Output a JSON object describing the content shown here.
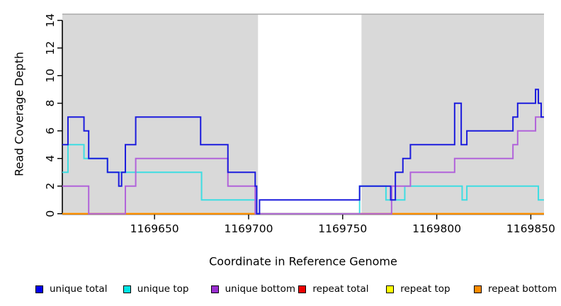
{
  "figure": {
    "xlabel": "Coordinate in Reference Genome",
    "ylabel": "Read Coverage Depth"
  },
  "chart_data": {
    "type": "line",
    "subtype": "step-after-coverage",
    "title": "",
    "xlabel": "Coordinate in Reference Genome",
    "ylabel": "Read Coverage Depth",
    "xlim": [
      1169601,
      1169857
    ],
    "ylim": [
      0,
      14.45
    ],
    "x_ticks": [
      1169650,
      1169700,
      1169750,
      1169800,
      1169850
    ],
    "y_ticks": [
      0,
      2,
      4,
      6,
      8,
      10,
      12,
      14
    ],
    "grid": false,
    "legend_position": "bottom",
    "shading": {
      "color": "#d9d9d9",
      "regions": [
        [
          1169601,
          1169705
        ],
        [
          1169760,
          1169857
        ]
      ],
      "unshaded_gap": [
        1169705,
        1169760
      ],
      "top_border_color": "#a8a8a8"
    },
    "axis_color": "#000000",
    "draw_order": [
      "repeat total",
      "repeat top",
      "repeat bottom",
      "unique top",
      "unique bottom",
      "unique total"
    ],
    "series": [
      {
        "name": "unique total",
        "color": "#1c1cdd",
        "points": [
          [
            1169601,
            5
          ],
          [
            1169604,
            7
          ],
          [
            1169612.5,
            6
          ],
          [
            1169615,
            4
          ],
          [
            1169625,
            3
          ],
          [
            1169631,
            2
          ],
          [
            1169632.5,
            3
          ],
          [
            1169634.5,
            5
          ],
          [
            1169640,
            7
          ],
          [
            1169674.5,
            5
          ],
          [
            1169689,
            3
          ],
          [
            1169703.5,
            2
          ],
          [
            1169704.3,
            0
          ],
          [
            1169705.8,
            1
          ],
          [
            1169759,
            2
          ],
          [
            1169775.5,
            1
          ],
          [
            1169778,
            3
          ],
          [
            1169782,
            4
          ],
          [
            1169786,
            5
          ],
          [
            1169809.5,
            8
          ],
          [
            1169813,
            5
          ],
          [
            1169816,
            6
          ],
          [
            1169840.5,
            7
          ],
          [
            1169843,
            8
          ],
          [
            1169852.5,
            9
          ],
          [
            1169854,
            8
          ],
          [
            1169855.5,
            7
          ]
        ]
      },
      {
        "name": "unique top",
        "color": "#3edde2",
        "points": [
          [
            1169601,
            3
          ],
          [
            1169604,
            5
          ],
          [
            1169612.5,
            4
          ],
          [
            1169625,
            3
          ],
          [
            1169675,
            1
          ],
          [
            1169704.3,
            0
          ],
          [
            1169759,
            2
          ],
          [
            1169773,
            1
          ],
          [
            1169783,
            2
          ],
          [
            1169813.5,
            1
          ],
          [
            1169816,
            2
          ],
          [
            1169854,
            1
          ]
        ]
      },
      {
        "name": "unique bottom",
        "color": "#b163da",
        "points": [
          [
            1169601,
            2
          ],
          [
            1169615,
            0
          ],
          [
            1169634.5,
            2
          ],
          [
            1169640,
            4
          ],
          [
            1169689,
            2
          ],
          [
            1169703.5,
            0
          ],
          [
            1169776,
            2
          ],
          [
            1169786,
            3
          ],
          [
            1169809.5,
            4
          ],
          [
            1169840.5,
            5
          ],
          [
            1169843,
            6
          ],
          [
            1169852.5,
            7
          ]
        ]
      },
      {
        "name": "repeat total",
        "color": "#e60000",
        "points": [
          [
            1169601,
            0
          ]
        ]
      },
      {
        "name": "repeat top",
        "color": "#ffff00",
        "points": [
          [
            1169601,
            0
          ]
        ]
      },
      {
        "name": "repeat bottom",
        "color": "#ff8c00",
        "points": [
          [
            1169601,
            0
          ]
        ]
      }
    ],
    "legend": [
      {
        "label": "unique total",
        "color": "#0000ee"
      },
      {
        "label": "unique top",
        "color": "#00e5e5"
      },
      {
        "label": "unique bottom",
        "color": "#9a2fd0"
      },
      {
        "label": "repeat total",
        "color": "#ee0000"
      },
      {
        "label": "repeat top",
        "color": "#ffff00"
      },
      {
        "label": "repeat bottom",
        "color": "#ff8c00"
      }
    ]
  }
}
